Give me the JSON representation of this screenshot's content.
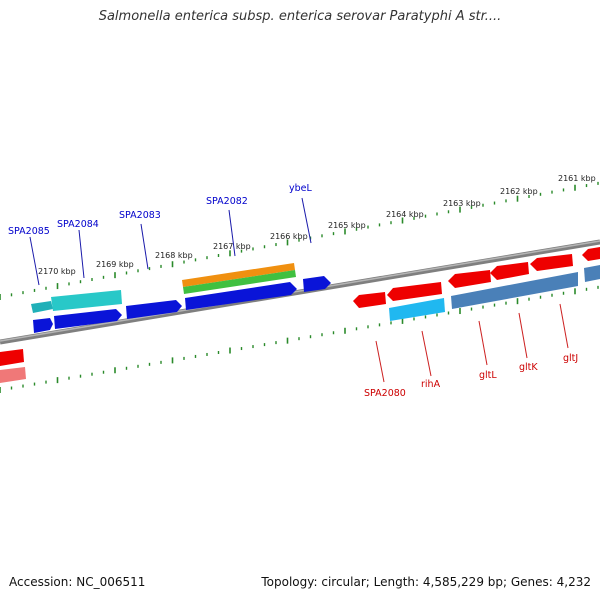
{
  "title": "Salmonella enterica subsp. enterica serovar Paratyphi A str....",
  "footer": {
    "accession": "Accession: NC_006511",
    "topology": "Topology: circular; Length: 4,585,229 bp; Genes: 4,232"
  },
  "colors": {
    "backbone": "#8a8a8a",
    "scale_ticks": "#2a8a2a",
    "forward_label": "#0000cc",
    "reverse_label": "#cc0000"
  },
  "kbp_labels": [
    "2161 kbp",
    "2162 kbp",
    "2163 kbp",
    "2164 kbp",
    "2165 kbp",
    "2166 kbp",
    "2167 kbp",
    "2168 kbp",
    "2169 kbp",
    "2170 kbp"
  ],
  "forward_genes": [
    "ybeL",
    "SPA2082",
    "SPA2083",
    "SPA2084",
    "SPA2085"
  ],
  "reverse_genes": [
    "SPA2080",
    "rihA",
    "gltL",
    "gltK",
    "gltJ"
  ]
}
